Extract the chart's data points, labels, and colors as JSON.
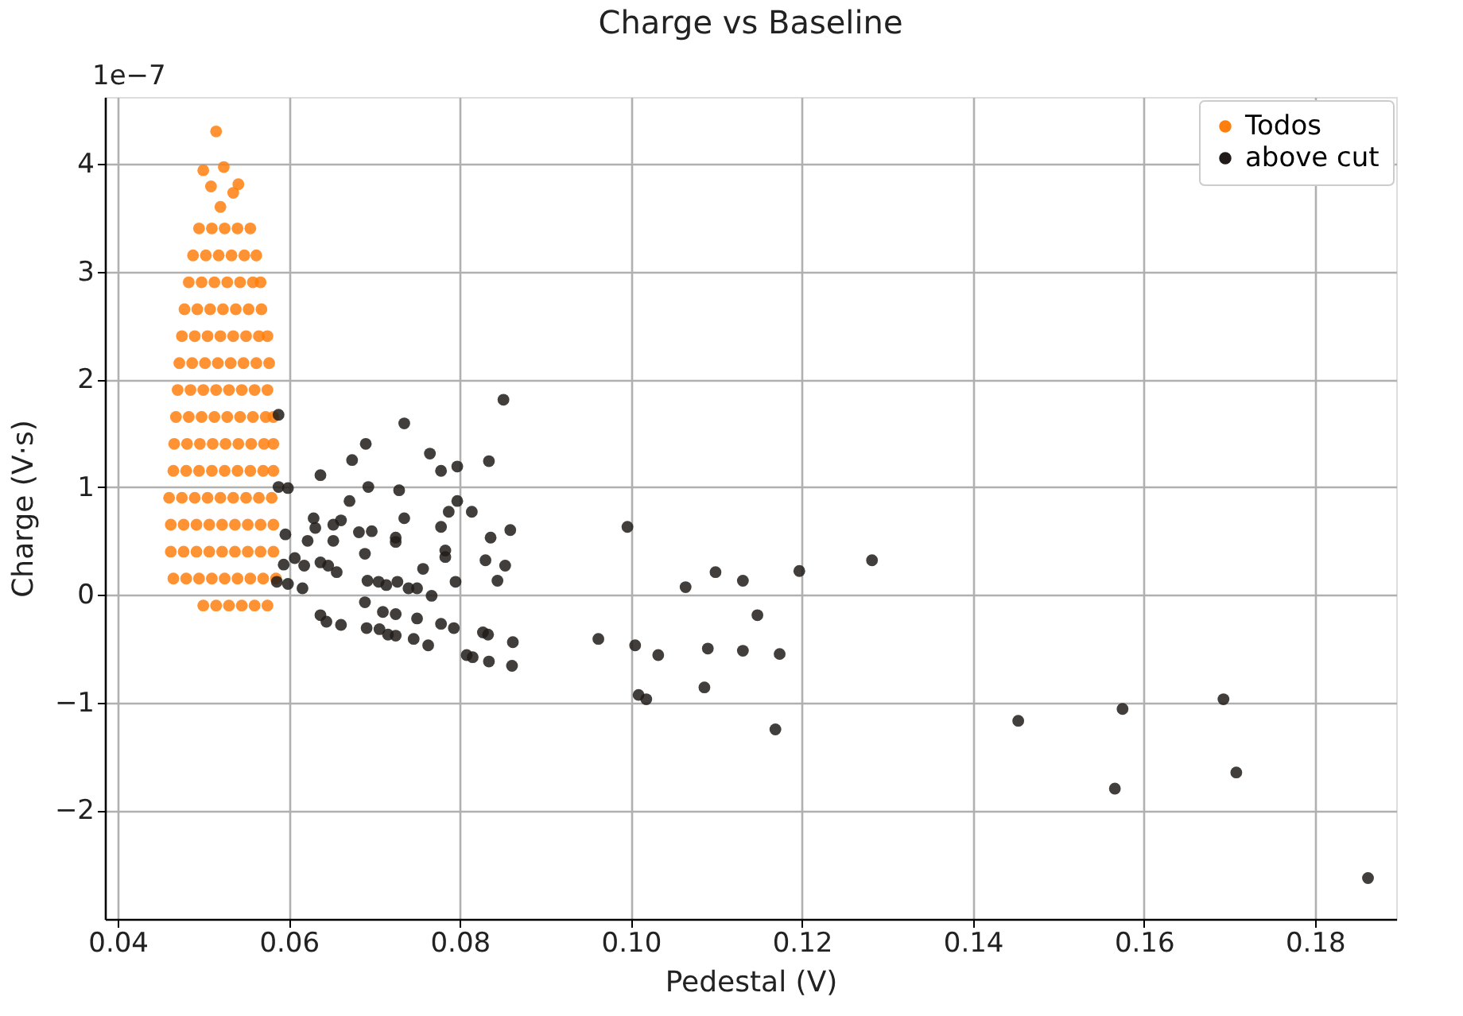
{
  "chart_data": {
    "type": "scatter",
    "title": "Charge vs Baseline",
    "xlabel": "Pedestal (V)",
    "ylabel": "Charge (V·s)",
    "annotations": [
      "1e−7"
    ],
    "xlim": [
      0.0385,
      0.1895
    ],
    "ylim": [
      -3.01,
      4.62
    ],
    "xticks": [
      {
        "value": 0.04,
        "label": "0.04"
      },
      {
        "value": 0.06,
        "label": "0.06"
      },
      {
        "value": 0.08,
        "label": "0.08"
      },
      {
        "value": 0.1,
        "label": "0.10"
      },
      {
        "value": 0.12,
        "label": "0.12"
      },
      {
        "value": 0.14,
        "label": "0.14"
      },
      {
        "value": 0.16,
        "label": "0.16"
      },
      {
        "value": 0.18,
        "label": "0.18"
      }
    ],
    "yticks": [
      -2,
      -1,
      0,
      1,
      2,
      3,
      4
    ],
    "grid": true,
    "legend": "top right",
    "marker": "circle",
    "series": [
      {
        "name": "Todos",
        "color": "#ff7f0e",
        "x": [
          0.05,
          0.0515,
          0.053,
          0.0545,
          0.056,
          0.0575,
          0.0465,
          0.048,
          0.0495,
          0.051,
          0.0525,
          0.054,
          0.0555,
          0.057,
          0.0585,
          0.0462,
          0.0477,
          0.0492,
          0.0507,
          0.0522,
          0.0537,
          0.0552,
          0.0567,
          0.0582,
          0.0462,
          0.0477,
          0.0492,
          0.0507,
          0.0522,
          0.0537,
          0.0552,
          0.0567,
          0.0582,
          0.046,
          0.0475,
          0.049,
          0.0505,
          0.052,
          0.0535,
          0.055,
          0.0565,
          0.058,
          0.0465,
          0.048,
          0.0495,
          0.051,
          0.0525,
          0.054,
          0.0555,
          0.057,
          0.0582,
          0.0466,
          0.0481,
          0.0496,
          0.0511,
          0.0526,
          0.0541,
          0.0556,
          0.0571,
          0.0582,
          0.0468,
          0.0483,
          0.0498,
          0.0513,
          0.0528,
          0.0543,
          0.0558,
          0.0573,
          0.0582,
          0.047,
          0.0485,
          0.05,
          0.0515,
          0.053,
          0.0545,
          0.056,
          0.0575,
          0.0472,
          0.0487,
          0.0502,
          0.0517,
          0.0532,
          0.0547,
          0.0562,
          0.0577,
          0.0475,
          0.049,
          0.0505,
          0.052,
          0.0535,
          0.055,
          0.0565,
          0.0575,
          0.0478,
          0.0493,
          0.0508,
          0.0523,
          0.0538,
          0.0553,
          0.0568,
          0.0483,
          0.0498,
          0.0513,
          0.0528,
          0.0543,
          0.0558,
          0.0567,
          0.0488,
          0.0503,
          0.0518,
          0.0533,
          0.0548,
          0.0562,
          0.0495,
          0.051,
          0.0525,
          0.054,
          0.0555,
          0.052,
          0.0535,
          0.0509,
          0.0541,
          0.05,
          0.0524,
          0.0515
        ],
        "values": [
          -0.1,
          -0.1,
          -0.1,
          -0.1,
          -0.1,
          -0.1,
          0.15,
          0.15,
          0.15,
          0.15,
          0.15,
          0.15,
          0.15,
          0.15,
          0.15,
          0.4,
          0.4,
          0.4,
          0.4,
          0.4,
          0.4,
          0.4,
          0.4,
          0.4,
          0.65,
          0.65,
          0.65,
          0.65,
          0.65,
          0.65,
          0.65,
          0.65,
          0.65,
          0.9,
          0.9,
          0.9,
          0.9,
          0.9,
          0.9,
          0.9,
          0.9,
          0.9,
          1.15,
          1.15,
          1.15,
          1.15,
          1.15,
          1.15,
          1.15,
          1.15,
          1.15,
          1.4,
          1.4,
          1.4,
          1.4,
          1.4,
          1.4,
          1.4,
          1.4,
          1.4,
          1.65,
          1.65,
          1.65,
          1.65,
          1.65,
          1.65,
          1.65,
          1.65,
          1.65,
          1.9,
          1.9,
          1.9,
          1.9,
          1.9,
          1.9,
          1.9,
          1.9,
          2.15,
          2.15,
          2.15,
          2.15,
          2.15,
          2.15,
          2.15,
          2.15,
          2.4,
          2.4,
          2.4,
          2.4,
          2.4,
          2.4,
          2.4,
          2.4,
          2.65,
          2.65,
          2.65,
          2.65,
          2.65,
          2.65,
          2.65,
          2.9,
          2.9,
          2.9,
          2.9,
          2.9,
          2.9,
          2.9,
          3.15,
          3.15,
          3.15,
          3.15,
          3.15,
          3.15,
          3.4,
          3.4,
          3.4,
          3.4,
          3.4,
          3.6,
          3.73,
          3.79,
          3.81,
          3.94,
          3.97,
          4.3
        ]
      },
      {
        "name": "above cut",
        "color": "#211c19",
        "x": [
          0.1453,
          0.1575,
          0.1566,
          0.1693,
          0.1708,
          0.1862,
          0.0996,
          0.1099,
          0.1131,
          0.1064,
          0.1197,
          0.1282,
          0.1148,
          0.0962,
          0.1005,
          0.1032,
          0.109,
          0.1131,
          0.1174,
          0.1009,
          0.1018,
          0.1086,
          0.1169,
          0.0588,
          0.0851,
          0.0735,
          0.069,
          0.0674,
          0.0637,
          0.0765,
          0.0778,
          0.0797,
          0.0834,
          0.0588,
          0.0599,
          0.0693,
          0.0729,
          0.0671,
          0.0797,
          0.0787,
          0.0814,
          0.0735,
          0.0629,
          0.0661,
          0.0652,
          0.0631,
          0.0778,
          0.0859,
          0.0596,
          0.0682,
          0.0697,
          0.0622,
          0.0652,
          0.0725,
          0.0725,
          0.0836,
          0.0689,
          0.0783,
          0.0783,
          0.083,
          0.0853,
          0.0607,
          0.0594,
          0.0618,
          0.0637,
          0.0646,
          0.0656,
          0.0757,
          0.0844,
          0.0586,
          0.0599,
          0.0616,
          0.0795,
          0.0692,
          0.0705,
          0.0714,
          0.0727,
          0.074,
          0.075,
          0.0767,
          0.0689,
          0.071,
          0.0725,
          0.075,
          0.0778,
          0.0793,
          0.0637,
          0.0644,
          0.0661,
          0.0691,
          0.0706,
          0.0716,
          0.0725,
          0.0746,
          0.0763,
          0.0827,
          0.0833,
          0.0862,
          0.0808,
          0.0815,
          0.0834,
          0.0861
        ],
        "values": [
          -1.17,
          -1.06,
          -1.8,
          -0.97,
          -1.65,
          -2.63,
          0.63,
          0.21,
          0.13,
          0.07,
          0.22,
          0.32,
          -0.19,
          -0.41,
          -0.47,
          -0.56,
          -0.5,
          -0.52,
          -0.55,
          -0.93,
          -0.97,
          -0.86,
          -1.25,
          1.67,
          1.81,
          1.59,
          1.4,
          1.25,
          1.11,
          1.31,
          1.15,
          1.19,
          1.24,
          1.0,
          0.99,
          1.0,
          0.97,
          0.87,
          0.87,
          0.77,
          0.77,
          0.71,
          0.71,
          0.69,
          0.65,
          0.62,
          0.63,
          0.6,
          0.56,
          0.58,
          0.59,
          0.5,
          0.5,
          0.53,
          0.49,
          0.53,
          0.38,
          0.41,
          0.35,
          0.32,
          0.27,
          0.34,
          0.28,
          0.27,
          0.3,
          0.27,
          0.21,
          0.24,
          0.13,
          0.12,
          0.1,
          0.06,
          0.12,
          0.13,
          0.12,
          0.09,
          0.12,
          0.06,
          0.06,
          -0.01,
          -0.07,
          -0.16,
          -0.18,
          -0.22,
          -0.27,
          -0.31,
          -0.19,
          -0.25,
          -0.28,
          -0.31,
          -0.32,
          -0.37,
          -0.38,
          -0.41,
          -0.47,
          -0.35,
          -0.37,
          -0.44,
          -0.56,
          -0.58,
          -0.62,
          -0.66
        ]
      }
    ]
  }
}
